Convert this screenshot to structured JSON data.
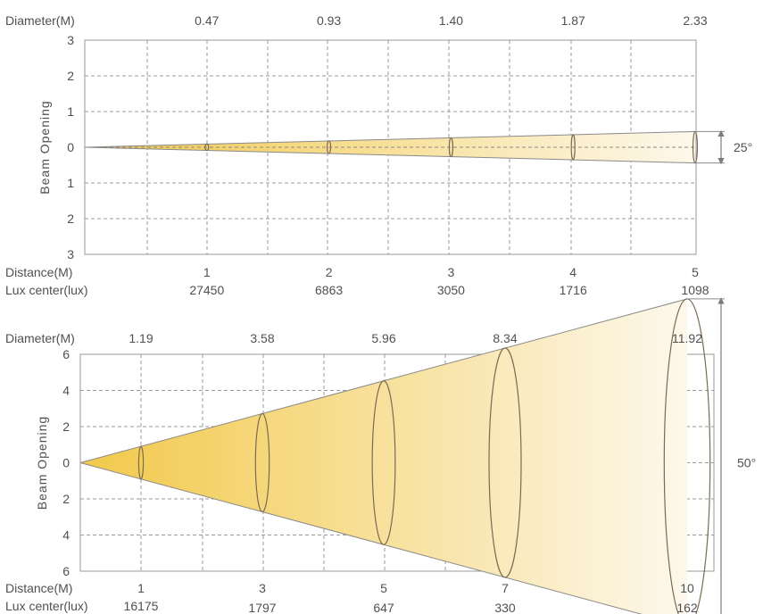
{
  "chart_data": [
    {
      "type": "beam-diagram",
      "row_labels": {
        "diameter": "Diameter(M)",
        "distance": "Distance(M)",
        "lux": "Lux center(lux)"
      },
      "ylabel": "Beam  Opening",
      "y_ticks": [
        "3",
        "2",
        "1",
        "0",
        "1",
        "2",
        "3"
      ],
      "beam_angle": "25°",
      "distance_max": 5,
      "points": [
        {
          "distance": "1",
          "diameter": "0.47",
          "lux": "27450",
          "d": 1,
          "dia": 0.47
        },
        {
          "distance": "2",
          "diameter": "0.93",
          "lux": "6863",
          "d": 2,
          "dia": 0.93
        },
        {
          "distance": "3",
          "diameter": "1.40",
          "lux": "3050",
          "d": 3,
          "dia": 1.4
        },
        {
          "distance": "4",
          "diameter": "1.87",
          "lux": "1716",
          "d": 4,
          "dia": 1.87
        },
        {
          "distance": "5",
          "diameter": "2.33",
          "lux": "1098",
          "d": 5,
          "dia": 2.33
        }
      ]
    },
    {
      "type": "beam-diagram",
      "row_labels": {
        "diameter": "Diameter(M)",
        "distance": "Distance(M)",
        "lux": "Lux center(lux)"
      },
      "ylabel": "Beam  Opening",
      "y_ticks": [
        "6",
        "4",
        "2",
        "0",
        "2",
        "4",
        "6"
      ],
      "beam_angle": "50°",
      "distance_max": 10,
      "points": [
        {
          "distance": "1",
          "diameter": "1.19",
          "lux": "16175",
          "d": 1,
          "dia": 1.19
        },
        {
          "distance": "3",
          "diameter": "3.58",
          "lux": "1797",
          "d": 3,
          "dia": 3.58
        },
        {
          "distance": "5",
          "diameter": "5.96",
          "lux": "647",
          "d": 5,
          "dia": 5.96
        },
        {
          "distance": "7",
          "diameter": "8.34",
          "lux": "330",
          "d": 7,
          "dia": 8.34
        },
        {
          "distance": "10",
          "diameter": "11.92",
          "lux": "162",
          "d": 10,
          "dia": 11.92
        }
      ]
    }
  ],
  "colors": {
    "beam_start": "#f2c94a",
    "beam_end": "#fdf8ec",
    "grid": "#9a9a9a",
    "text": "#505050"
  }
}
